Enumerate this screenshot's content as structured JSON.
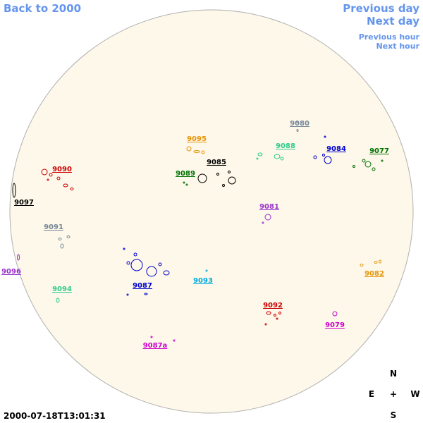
{
  "navigation": {
    "back": "Back to 2000",
    "previous_day": "Previous day",
    "next_day": "Next day",
    "previous_hour": "Previous hour",
    "next_hour": "Next hour"
  },
  "regions": [
    {
      "label": "9080",
      "color": "#778899"
    },
    {
      "label": "9095",
      "color": "#e6950a"
    },
    {
      "label": "9088",
      "color": "#2ecc8a"
    },
    {
      "label": "9084",
      "color": "#0000cc"
    },
    {
      "label": "9077",
      "color": "#007000"
    },
    {
      "label": "9090",
      "color": "#cc0000"
    },
    {
      "label": "9085",
      "color": "#000000"
    },
    {
      "label": "9089",
      "color": "#007000"
    },
    {
      "label": "9097",
      "color": "#000000"
    },
    {
      "label": "9081",
      "color": "#9932cc"
    },
    {
      "label": "9091",
      "color": "#778899"
    },
    {
      "label": "9096",
      "color": "#9932cc"
    },
    {
      "label": "9087",
      "color": "#0000cc"
    },
    {
      "label": "9093",
      "color": "#00aadd"
    },
    {
      "label": "9082",
      "color": "#e6950a"
    },
    {
      "label": "9094",
      "color": "#2ecc8a"
    },
    {
      "label": "9092",
      "color": "#cc0000"
    },
    {
      "label": "9079",
      "color": "#cc00cc"
    },
    {
      "label": "9087a",
      "color": "#cc00cc"
    }
  ],
  "timestamp": "2000-07-18T13:01:31",
  "compass": {
    "north": "N",
    "east": "E",
    "center": "+",
    "west": "W",
    "south": "S"
  }
}
